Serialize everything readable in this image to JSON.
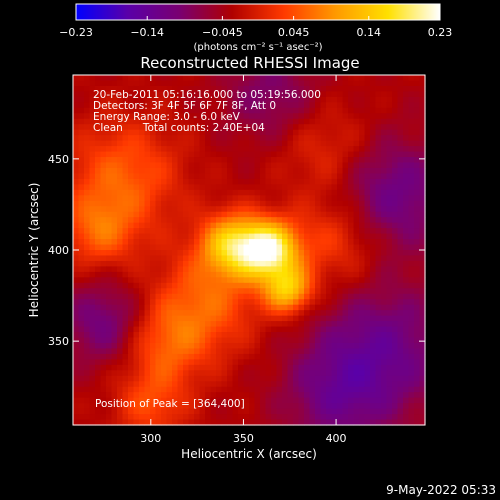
{
  "chart_data": {
    "type": "heatmap",
    "title": "Reconstructed RHESSI Image",
    "xlabel": "Heliocentric X (arcsec)",
    "ylabel": "Heliocentric Y (arcsec)",
    "xlim": [
      258,
      448
    ],
    "ylim": [
      304,
      496
    ],
    "x_ticks": [
      300,
      350,
      400
    ],
    "y_ticks": [
      350,
      400,
      450
    ],
    "colorbar": {
      "range": [
        -0.23,
        0.23
      ],
      "tick_values": [
        -0.23,
        -0.14,
        -0.045,
        0.045,
        0.14,
        0.23
      ],
      "tick_labels": [
        "−0.23",
        "−0.14",
        "−0.045",
        "0.045",
        "0.14",
        "0.23"
      ],
      "unit_label": "(photons cm⁻² s⁻¹ asec⁻²)",
      "stops": [
        "#0000ff",
        "#5a00a8",
        "#7a0070",
        "#b00000",
        "#ff3a00",
        "#ff9a00",
        "#ffe000",
        "#ffffff"
      ]
    },
    "info_lines": [
      "20-Feb-2011 05:16:16.000 to 05:19:56.000",
      "Detectors: 3F 4F 5F 6F 7F 8F, Att 0",
      "Energy Range: 3.0 - 6.0 keV",
      "Clean      Total counts: 2.40E+04"
    ],
    "peak_label": "Position of Peak = [364,400]",
    "peak": {
      "x": 364,
      "y": 400,
      "value": 0.23
    },
    "sources": [
      {
        "x": 364,
        "y": 400,
        "amplitude": 0.23,
        "sigma": 11
      },
      {
        "x": 344,
        "y": 403,
        "amplitude": 0.17,
        "sigma": 12
      },
      {
        "x": 374,
        "y": 378,
        "amplitude": 0.16,
        "sigma": 9
      },
      {
        "x": 330,
        "y": 372,
        "amplitude": 0.09,
        "sigma": 20
      },
      {
        "x": 308,
        "y": 348,
        "amplitude": 0.08,
        "sigma": 16
      },
      {
        "x": 285,
        "y": 440,
        "amplitude": 0.09,
        "sigma": 22
      },
      {
        "x": 272,
        "y": 410,
        "amplitude": 0.08,
        "sigma": 14
      },
      {
        "x": 300,
        "y": 315,
        "amplitude": 0.07,
        "sigma": 14
      },
      {
        "x": 400,
        "y": 405,
        "amplitude": 0.07,
        "sigma": 18
      },
      {
        "x": 395,
        "y": 455,
        "amplitude": 0.05,
        "sigma": 18
      },
      {
        "x": 430,
        "y": 430,
        "amplitude": -0.09,
        "sigma": 22
      },
      {
        "x": 425,
        "y": 345,
        "amplitude": -0.09,
        "sigma": 25
      },
      {
        "x": 275,
        "y": 360,
        "amplitude": -0.08,
        "sigma": 16
      },
      {
        "x": 365,
        "y": 485,
        "amplitude": -0.06,
        "sigma": 18
      },
      {
        "x": 400,
        "y": 320,
        "amplitude": -0.07,
        "sigma": 20
      }
    ]
  },
  "footer": {
    "timestamp": "9-May-2022 05:33"
  }
}
